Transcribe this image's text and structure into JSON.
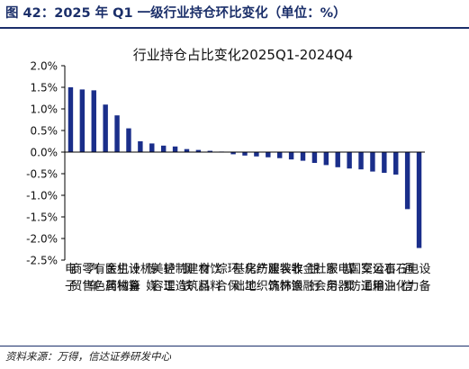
{
  "figure": {
    "label": "图 42：2025 年 Q1 一级行业持仓环比变化（单位：%）",
    "source": "资料来源：万得，信达证券研发中心"
  },
  "colors": {
    "bar": "#1a2e8a",
    "title_band": "#1b2f6a",
    "axis": "#000000"
  },
  "chart_data": {
    "type": "bar",
    "title": "行业持仓占比变化2025Q1-2024Q4",
    "xlabel": "",
    "ylabel": "",
    "ylim": [
      -2.5,
      2.0
    ],
    "yticks": [
      2.0,
      1.5,
      1.0,
      0.5,
      0.0,
      -0.5,
      -1.0,
      -1.5,
      -2.0,
      -2.5
    ],
    "ytick_labels": [
      "2.0%",
      "1.5%",
      "1.0%",
      "0.5%",
      "0.0%",
      "-0.5%",
      "-1.0%",
      "-1.5%",
      "-2.0%",
      "-2.5%"
    ],
    "grid": false,
    "legend": "none",
    "categories": [
      "电子",
      "商贸零售",
      "汽车",
      "有色金属",
      "医药生物",
      "机械设备",
      "计算机",
      "传媒",
      "美容护理",
      "轻工制造",
      "钢铁",
      "建筑材料",
      "食品饮料",
      "综合",
      "环保",
      "基础化工",
      "房地产",
      "纺织服饰",
      "建筑装饰",
      "农林牧渔",
      "非银金融",
      "银行",
      "社会服务",
      "家用电器",
      "煤炭",
      "国防军工",
      "交通运输",
      "公用事业",
      "石油石化",
      "通信",
      "电力设备"
    ],
    "values": [
      1.5,
      1.45,
      1.43,
      1.1,
      0.85,
      0.55,
      0.25,
      0.2,
      0.15,
      0.13,
      0.07,
      0.05,
      0.03,
      0.0,
      -0.05,
      -0.08,
      -0.1,
      -0.12,
      -0.14,
      -0.17,
      -0.2,
      -0.25,
      -0.3,
      -0.35,
      -0.38,
      -0.4,
      -0.45,
      -0.48,
      -0.52,
      -1.32,
      -2.22
    ]
  }
}
